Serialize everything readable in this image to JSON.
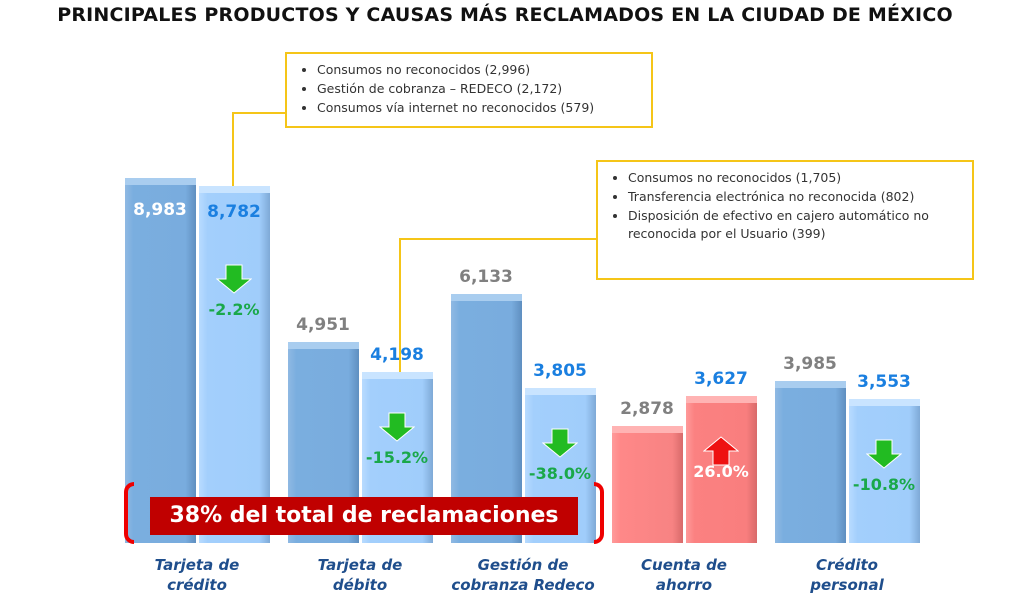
{
  "title": "PRINCIPALES PRODUCTOS Y CAUSAS MÁS RECLAMADOS EN LA CIUDAD DE MÉXICO",
  "chart_data": {
    "type": "bar",
    "title": "PRINCIPALES PRODUCTOS Y CAUSAS MÁS RECLAMADOS EN LA CIUDAD DE MÉXICO",
    "categories": [
      "Tarjeta de crédito",
      "Tarjeta de débito",
      "Gestión de cobranza Redeco",
      "Cuenta de ahorro",
      "Crédito personal"
    ],
    "category_lines": [
      [
        "Tarjeta de",
        "crédito"
      ],
      [
        "Tarjeta de",
        "débito"
      ],
      [
        "Gestión de",
        "cobranza Redeco"
      ],
      [
        "Cuenta de",
        "ahorro"
      ],
      [
        "Crédito",
        "personal"
      ]
    ],
    "series": [
      {
        "name": "previous",
        "values": [
          8983,
          4951,
          6133,
          2878,
          3985
        ],
        "labels": [
          "8,983",
          "4,951",
          "6,133",
          "2,878",
          "3,985"
        ]
      },
      {
        "name": "current",
        "values": [
          8782,
          4198,
          3805,
          3627,
          3553
        ],
        "labels": [
          "8,782",
          "4,198",
          "3,805",
          "3,627",
          "3,553"
        ]
      }
    ],
    "changes": [
      "-2.2%",
      "-15.2%",
      "-38.0%",
      "26.0%",
      "-10.8%"
    ],
    "change_direction": [
      "down",
      "down",
      "down",
      "up",
      "down"
    ],
    "ylim": [
      0,
      8983
    ],
    "colors": {
      "blue_dark": "#7aaedf",
      "blue_light": "#a0cdfb",
      "red": "#f78383",
      "down_arrow": "#22bb22",
      "up_arrow": "#ee1111",
      "pct_green": "#1aa84a",
      "current_label": "#1a7fe0",
      "prev_label": "#808080"
    }
  },
  "banner": "38% del total de reclamaciones",
  "callouts": [
    {
      "items": [
        "Consumos no reconocidos (2,996)",
        "Gestión de cobranza – REDECO (2,172)",
        "Consumos vía internet no reconocidos (579)"
      ]
    },
    {
      "items": [
        "Consumos no reconocidos (1,705)",
        "Transferencia electrónica no reconocida (802)",
        "Disposición de efectivo en cajero automático no reconocida por el Usuario (399)"
      ]
    }
  ]
}
